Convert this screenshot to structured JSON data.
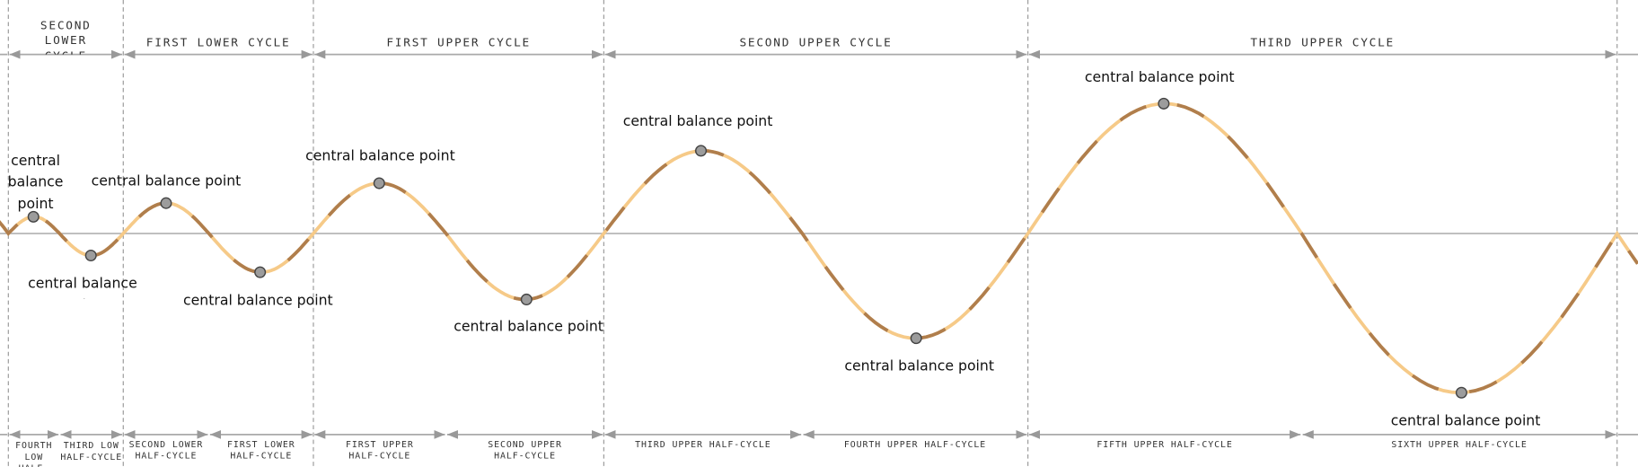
{
  "cycles": [
    "SECOND LOWER CYCLE",
    "FIRST LOWER CYCLE",
    "FIRST UPPER CYCLE",
    "SECOND UPPER CYCLE",
    "THIRD UPPER CYCLE"
  ],
  "half_cycles": [
    "FOURTH LOW HALF-CYCLE",
    "THIRD LOW HALF-CYCLE",
    "SECOND LOWER HALF-CYCLE",
    "FIRST LOWER HALF-CYCLE",
    "FIRST UPPER HALF-CYCLE",
    "SECOND UPPER HALF-CYCLE",
    "THIRD UPPER HALF-CYCLE",
    "FOURTH UPPER HALF-CYCLE",
    "FIFTH UPPER HALF-CYCLE",
    "SIXTH UPPER HALF-CYCLE"
  ],
  "points": [
    {
      "label": "central balance point"
    },
    {
      "label": "central balance point"
    },
    {
      "label": "central balance point"
    },
    {
      "label": "central balance point"
    },
    {
      "label": "central balance point"
    },
    {
      "label": "central balance point"
    },
    {
      "label": "central balance point"
    },
    {
      "label": "central balance point"
    },
    {
      "label": "central balance point"
    },
    {
      "label": "central balance point"
    }
  ]
}
